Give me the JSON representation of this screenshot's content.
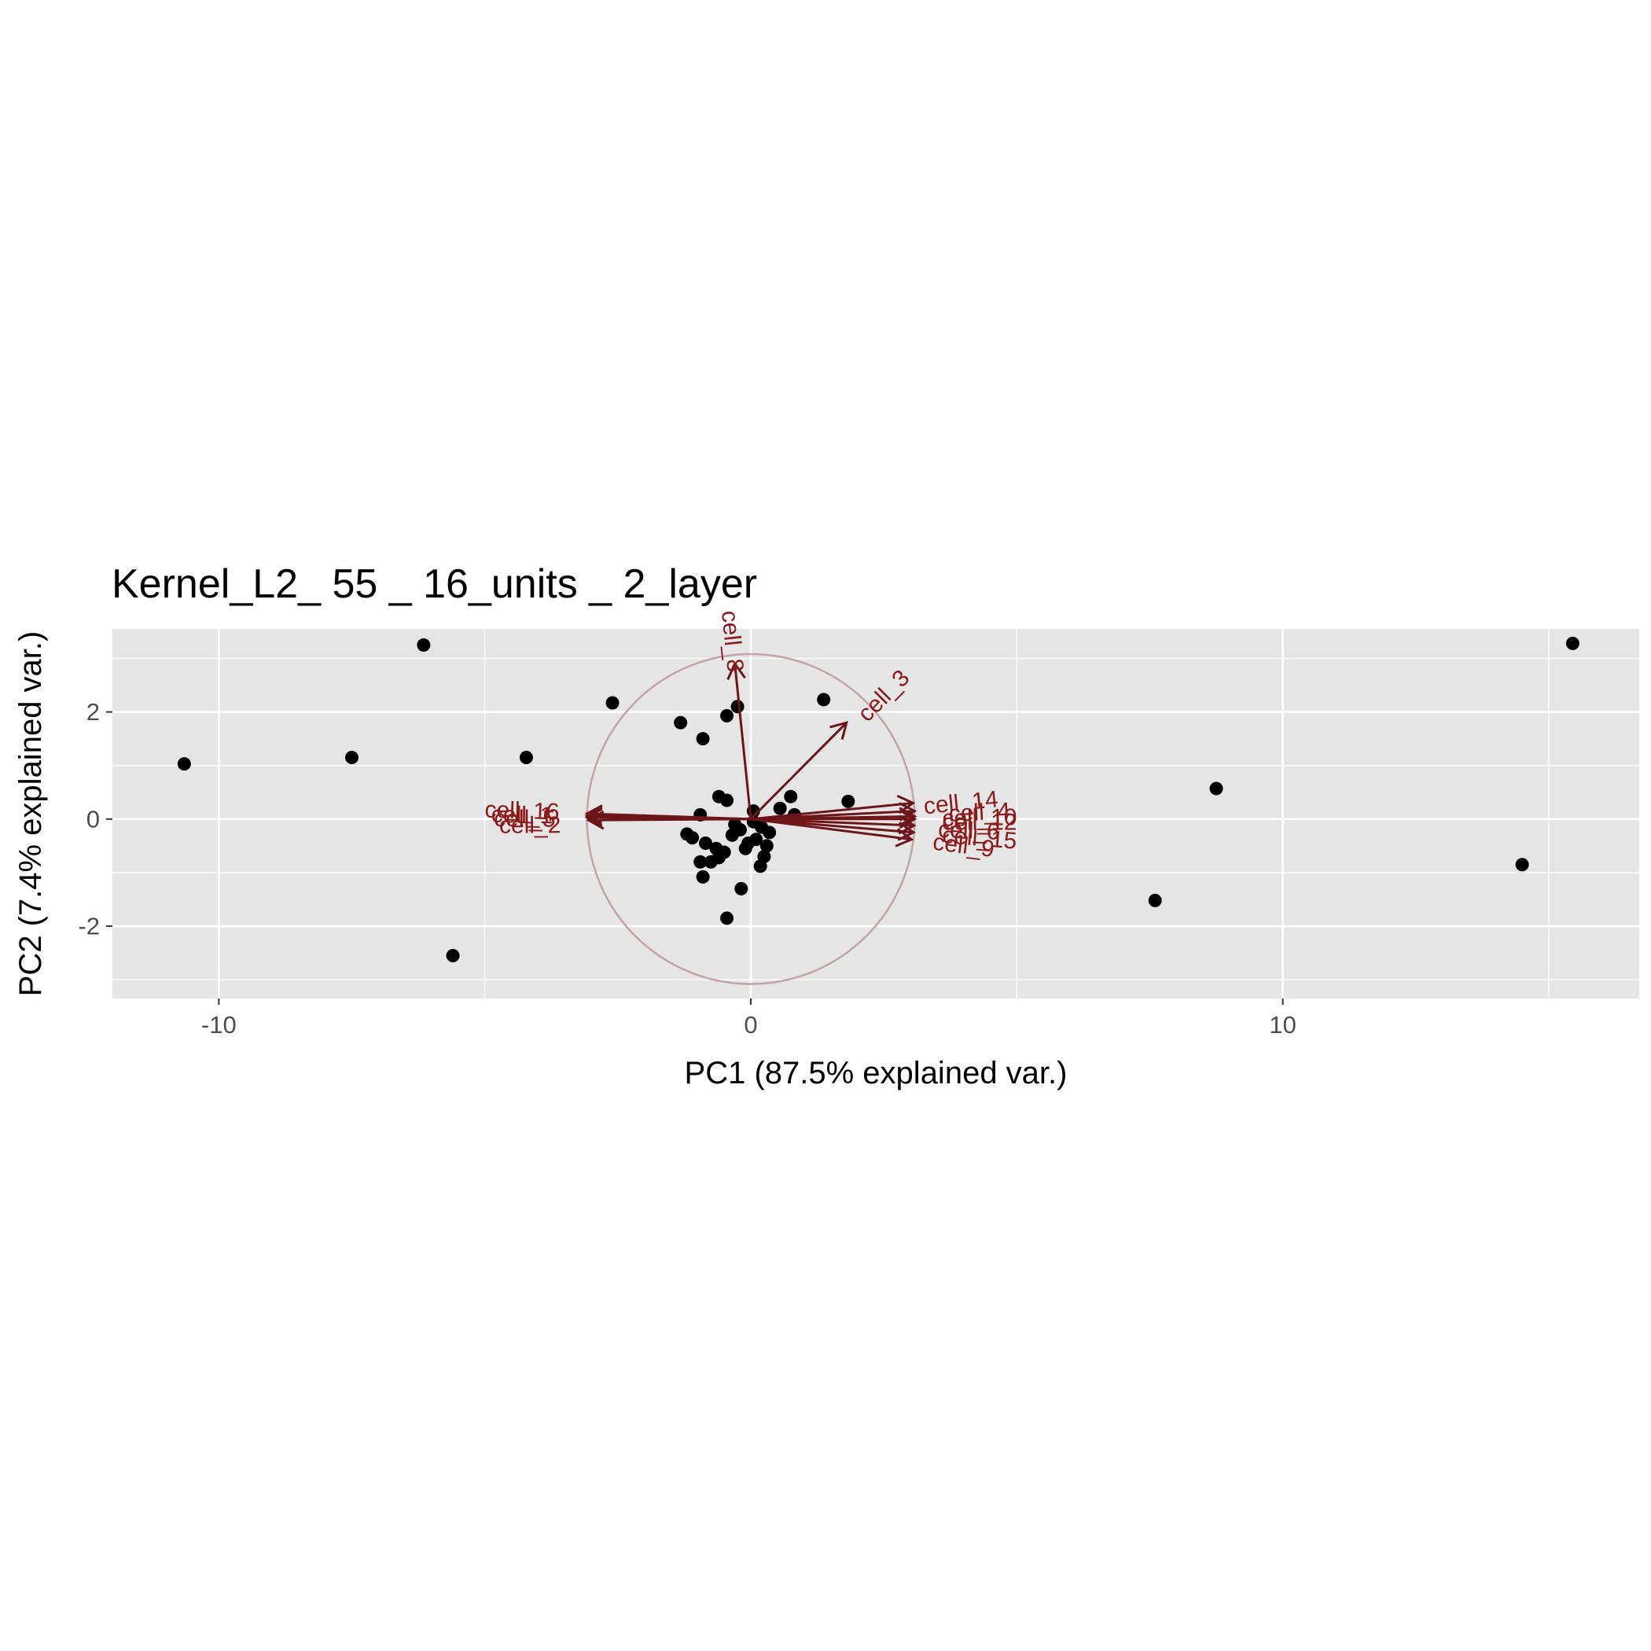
{
  "chart_data": {
    "type": "scatter",
    "title": "Kernel_L2_ 55 _ 16_units _ 2_layer",
    "xlabel": "PC1 (87.5% explained var.)",
    "ylabel": "PC2 (7.4% explained var.)",
    "xlim": [
      -12,
      16.7
    ],
    "ylim": [
      -3.35,
      3.55
    ],
    "x_ticks": [
      -10,
      0,
      10
    ],
    "x_tick_labels": [
      "-10",
      "0",
      "10"
    ],
    "y_ticks": [
      -2,
      0,
      2
    ],
    "y_tick_labels": [
      "-2",
      "0",
      "2"
    ],
    "grid": true,
    "legend": "none",
    "colors": {
      "panel": "#e5e5e5",
      "grid": "#ffffff",
      "points": "#000000",
      "arrows": "#6e1519",
      "arrow_labels": "#8B1A1A",
      "circle": "#c4a2a8"
    },
    "circle_radius": 3.08,
    "points": [
      {
        "x": -10.65,
        "y": 1.03
      },
      {
        "x": -7.5,
        "y": 1.15
      },
      {
        "x": -6.15,
        "y": 3.25
      },
      {
        "x": -5.6,
        "y": -2.55
      },
      {
        "x": -4.22,
        "y": 1.15
      },
      {
        "x": -2.6,
        "y": 2.17
      },
      {
        "x": -1.32,
        "y": 1.8
      },
      {
        "x": -0.9,
        "y": 1.5
      },
      {
        "x": -0.45,
        "y": 1.93
      },
      {
        "x": -0.25,
        "y": 2.1
      },
      {
        "x": 1.37,
        "y": 2.23
      },
      {
        "x": 1.83,
        "y": 0.33
      },
      {
        "x": 0.75,
        "y": 0.42
      },
      {
        "x": 0.55,
        "y": 0.2
      },
      {
        "x": 0.82,
        "y": 0.08
      },
      {
        "x": 0.05,
        "y": 0.15
      },
      {
        "x": -0.6,
        "y": 0.42
      },
      {
        "x": -0.45,
        "y": 0.35
      },
      {
        "x": -0.95,
        "y": 0.08
      },
      {
        "x": -1.2,
        "y": -0.28
      },
      {
        "x": -1.1,
        "y": -0.35
      },
      {
        "x": -0.85,
        "y": -0.45
      },
      {
        "x": -0.65,
        "y": -0.55
      },
      {
        "x": -0.5,
        "y": -0.62
      },
      {
        "x": -0.35,
        "y": -0.3
      },
      {
        "x": -0.2,
        "y": -0.2
      },
      {
        "x": 0.1,
        "y": -0.38
      },
      {
        "x": 0.3,
        "y": -0.5
      },
      {
        "x": 0.25,
        "y": -0.7
      },
      {
        "x": -0.1,
        "y": -0.55
      },
      {
        "x": -0.75,
        "y": -0.8
      },
      {
        "x": -0.95,
        "y": -0.8
      },
      {
        "x": -0.9,
        "y": -1.08
      },
      {
        "x": -0.6,
        "y": -0.72
      },
      {
        "x": 0.18,
        "y": -0.88
      },
      {
        "x": -0.18,
        "y": -1.3
      },
      {
        "x": -0.45,
        "y": -1.85
      },
      {
        "x": 0.05,
        "y": -0.05
      },
      {
        "x": 0.35,
        "y": -0.25
      },
      {
        "x": -0.05,
        "y": -0.45
      },
      {
        "x": 0.2,
        "y": -0.15
      },
      {
        "x": -0.3,
        "y": -0.1
      },
      {
        "x": 7.6,
        "y": -1.52
      },
      {
        "x": 8.75,
        "y": 0.57
      },
      {
        "x": 14.5,
        "y": -0.85
      },
      {
        "x": 15.45,
        "y": 3.28
      }
    ],
    "loadings": [
      {
        "label": "cell_8",
        "x": -0.3,
        "y": 2.9,
        "lx": -0.35,
        "ly": 3.32
      },
      {
        "label": "cell_3",
        "x": 1.8,
        "y": 1.8,
        "lx": 2.5,
        "ly": 2.3
      },
      {
        "label": "cell_16",
        "x": -3.08,
        "y": 0.1,
        "lx": -4.3,
        "ly": 0.15
      },
      {
        "label": "cell_1",
        "x": -3.08,
        "y": 0.06,
        "lx": -4.3,
        "ly": 0.07
      },
      {
        "label": "cell_5",
        "x": -3.08,
        "y": 0.03,
        "lx": -4.25,
        "ly": 0.0
      },
      {
        "label": "cell_2",
        "x": -3.05,
        "y": -0.02,
        "lx": -4.15,
        "ly": -0.12
      },
      {
        "label": "cell_14",
        "x": 3.05,
        "y": 0.3,
        "lx": 3.95,
        "ly": 0.3
      },
      {
        "label": "cell_4",
        "x": 3.08,
        "y": 0.15,
        "lx": 4.3,
        "ly": 0.12
      },
      {
        "label": "cell_10",
        "x": 3.08,
        "y": 0.05,
        "lx": 4.3,
        "ly": 0.02
      },
      {
        "label": "cell_12",
        "x": 3.08,
        "y": 0.0,
        "lx": 4.3,
        "ly": -0.06
      },
      {
        "label": "cell_6",
        "x": 3.07,
        "y": -0.12,
        "lx": 4.1,
        "ly": -0.22
      },
      {
        "label": "cell_15",
        "x": 3.06,
        "y": -0.25,
        "lx": 4.3,
        "ly": -0.36
      },
      {
        "label": "cell_9",
        "x": 3.02,
        "y": -0.38,
        "lx": 4.0,
        "ly": -0.5
      }
    ]
  }
}
